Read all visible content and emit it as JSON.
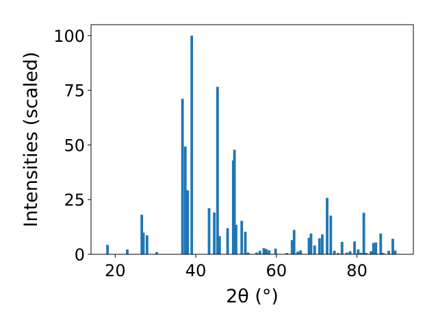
{
  "chart_data": {
    "type": "bar",
    "xlabel": "2θ (°)",
    "ylabel": "Intensities (scaled)",
    "xlim": [
      14,
      94
    ],
    "ylim": [
      0,
      105
    ],
    "xticks": [
      20,
      40,
      60,
      80
    ],
    "yticks": [
      0,
      25,
      50,
      75,
      100
    ],
    "grid": false,
    "bar_color": "#1f77b4",
    "bar_width_deg": 0.65,
    "x": [
      18.1,
      23.0,
      26.6,
      27.0,
      27.9,
      30.3,
      36.7,
      37.4,
      38.0,
      39.0,
      43.3,
      44.6,
      45.4,
      45.9,
      47.9,
      49.3,
      49.6,
      50.0,
      51.4,
      52.3,
      53.0,
      55.1,
      55.9,
      56.9,
      57.5,
      58.2,
      59.8,
      62.6,
      63.9,
      64.4,
      65.3,
      66.0,
      68.1,
      68.6,
      69.5,
      70.7,
      71.4,
      72.6,
      73.5,
      74.4,
      75.3,
      76.3,
      77.5,
      78.3,
      79.4,
      80.3,
      81.0,
      81.7,
      82.3,
      83.5,
      84.1,
      84.7,
      85.9,
      86.5,
      87.9,
      88.9,
      89.5
    ],
    "values": [
      4.3,
      2.2,
      18.1,
      9.9,
      8.7,
      1.0,
      71.1,
      49.3,
      29.3,
      100.0,
      21.1,
      19.1,
      76.6,
      8.3,
      11.9,
      42.9,
      47.8,
      13.5,
      15.3,
      10.3,
      0.8,
      0.8,
      1.6,
      2.8,
      2.4,
      1.8,
      2.6,
      0.6,
      6.5,
      11.1,
      1.2,
      1.8,
      7.5,
      9.5,
      4.0,
      7.3,
      9.1,
      25.8,
      17.7,
      1.6,
      0.6,
      5.7,
      0.8,
      1.4,
      5.9,
      2.2,
      0.7,
      19.0,
      0.6,
      1.4,
      5.2,
      5.4,
      9.5,
      0.6,
      1.6,
      7.1,
      1.7
    ]
  }
}
